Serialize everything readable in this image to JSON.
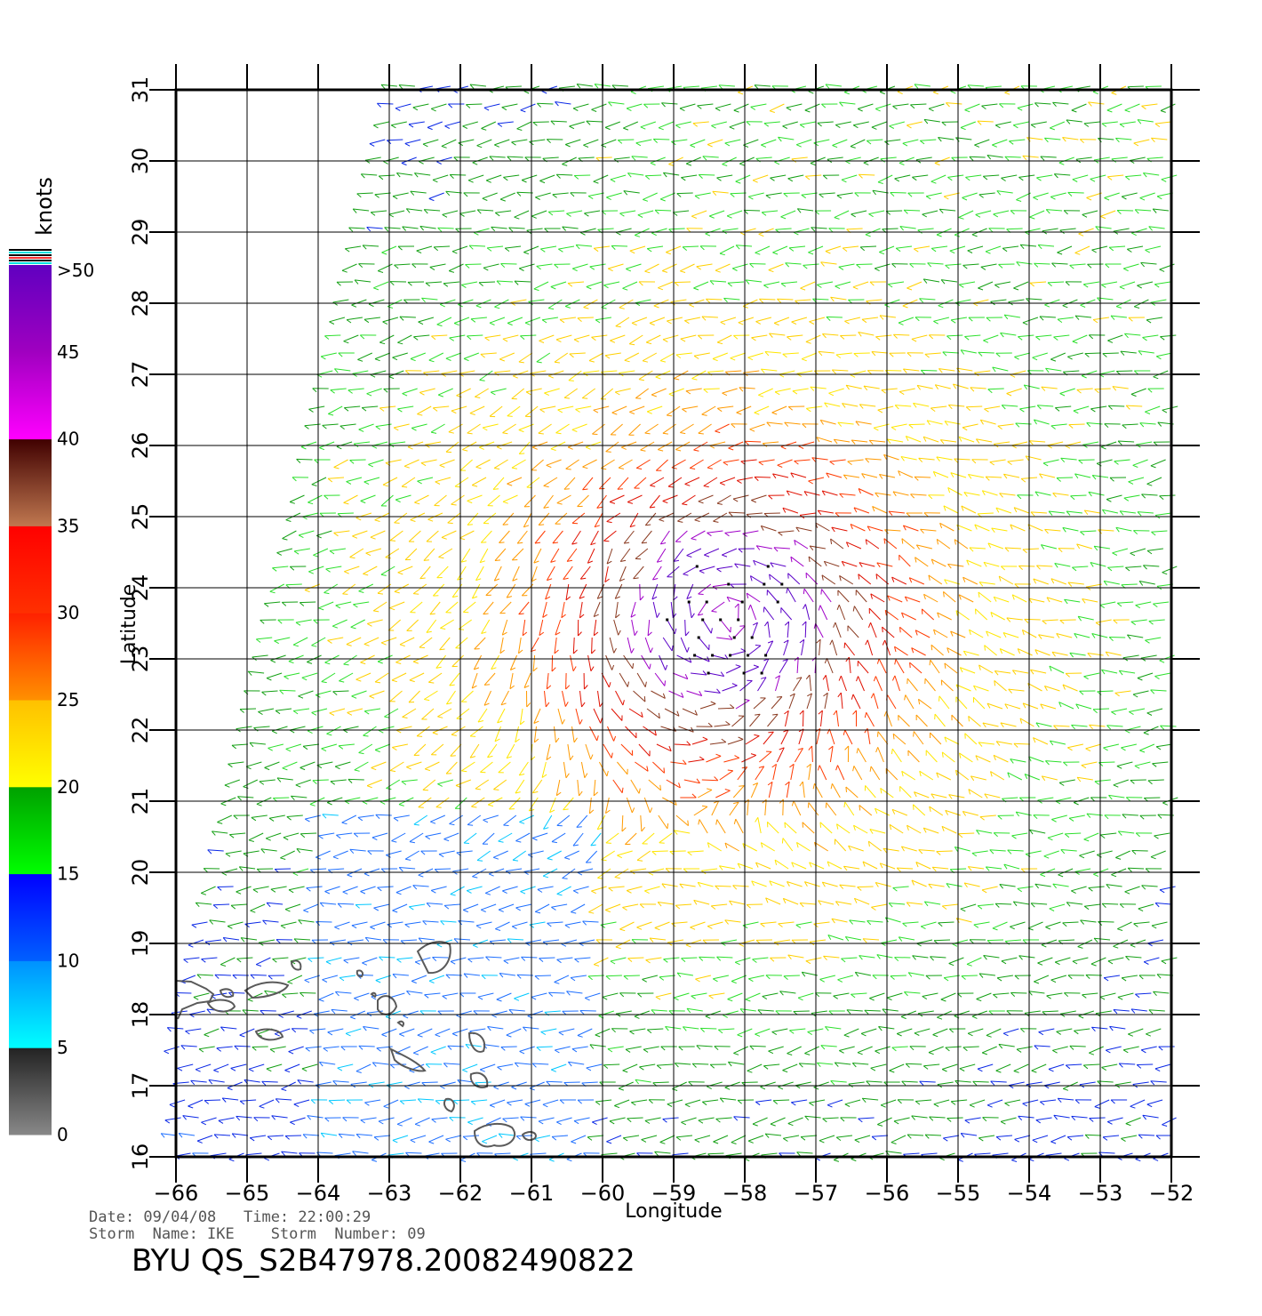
{
  "chart_data": {
    "type": "vector-field",
    "xlabel": "Longitude",
    "ylabel": "Latitude",
    "xlim": [
      -66,
      -52
    ],
    "ylim": [
      16,
      31
    ],
    "x_ticks": [
      "−66",
      "−65",
      "−64",
      "−63",
      "−62",
      "−61",
      "−60",
      "−59",
      "−58",
      "−57",
      "−56",
      "−55",
      "−54",
      "−53",
      "−52"
    ],
    "y_ticks": [
      "16",
      "17",
      "18",
      "19",
      "20",
      "21",
      "22",
      "23",
      "24",
      "25",
      "26",
      "27",
      "28",
      "29",
      "30",
      "31"
    ],
    "grid": true,
    "storm_center": {
      "lon": -58.2,
      "lat": 23.6
    },
    "colorbar": {
      "title": "knots",
      "labels": [
        ">50",
        "45",
        "40",
        "35",
        "30",
        "25",
        "20",
        "15",
        "10",
        "5",
        "0"
      ],
      "bands": [
        {
          "from": 0,
          "to": 5,
          "top": "#222222",
          "bottom": "#888888"
        },
        {
          "from": 5,
          "to": 10,
          "top": "#0090ff",
          "bottom": "#00ffff"
        },
        {
          "from": 10,
          "to": 15,
          "top": "#0000ff",
          "bottom": "#0060ff"
        },
        {
          "from": 15,
          "to": 20,
          "top": "#00a000",
          "bottom": "#00ff00"
        },
        {
          "from": 20,
          "to": 25,
          "top": "#ffc000",
          "bottom": "#ffff00"
        },
        {
          "from": 25,
          "to": 30,
          "top": "#ff2000",
          "bottom": "#ff9000"
        },
        {
          "from": 30,
          "to": 35,
          "top": "#ff0000",
          "bottom": "#ff3000"
        },
        {
          "from": 35,
          "to": 40,
          "top": "#400000",
          "bottom": "#c07850"
        },
        {
          "from": 40,
          "to": 45,
          "top": "#a000c0",
          "bottom": "#ff00ff"
        },
        {
          "from": 45,
          "to": 50,
          "top": "#6000c0",
          "bottom": "#a000c0"
        }
      ]
    }
  },
  "meta": {
    "line1": "Date: 09/04/08   Time: 22:00:29",
    "line2": "Storm  Name: IKE    Storm  Number: 09",
    "title": "BYU  QS_S2B47978.20082490822"
  }
}
